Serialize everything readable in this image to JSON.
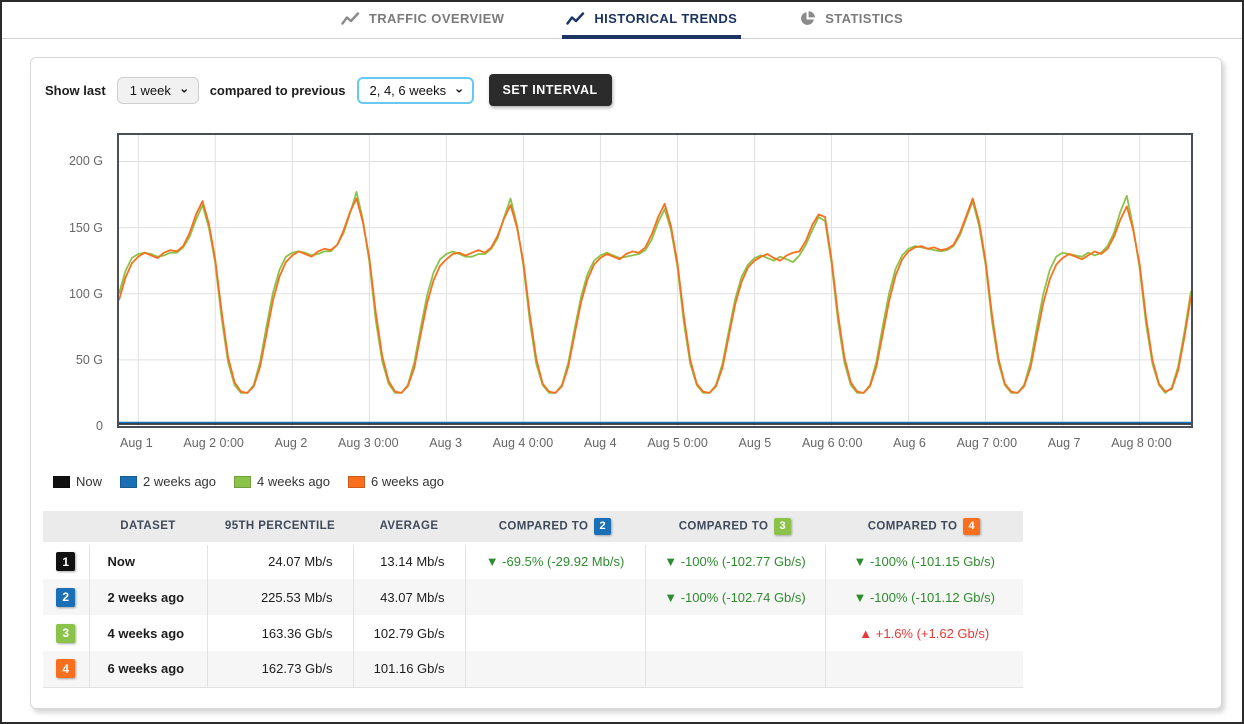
{
  "colors": {
    "accent_navy": "#1c3461",
    "green_down": "#2e8b2e",
    "red_up": "#e53935",
    "series_now": "#111111",
    "series_2w": "#1a6fb5",
    "series_4w": "#8bc34a",
    "series_6w": "#f96f1e"
  },
  "tabs": [
    {
      "label": "TRAFFIC OVERVIEW",
      "icon": "line-chart-icon",
      "active": false
    },
    {
      "label": "HISTORICAL TRENDS",
      "icon": "line-chart-icon",
      "active": true
    },
    {
      "label": "STATISTICS",
      "icon": "pie-chart-icon",
      "active": false
    }
  ],
  "controls": {
    "show_last_label": "Show last",
    "show_last_value": "1 week",
    "compared_label": "compared to previous",
    "compared_value": "2, 4, 6 weeks",
    "set_interval_label": "SET INTERVAL"
  },
  "chart_data": {
    "type": "line",
    "title": "",
    "xlabel": "",
    "ylabel": "",
    "grid": true,
    "legend_position": "bottom-left",
    "ylim": [
      0,
      220
    ],
    "y_ticks": [
      "200 G",
      "150 G",
      "100 G",
      "50 G",
      "0"
    ],
    "y_tick_values": [
      200,
      150,
      100,
      50,
      0
    ],
    "x_unit": "hours since Aug 1 00:00",
    "x_domain": [
      9,
      176
    ],
    "x_ticks": [
      {
        "hour": 12,
        "label": "Aug 1"
      },
      {
        "hour": 24,
        "label": "Aug 2 0:00"
      },
      {
        "hour": 36,
        "label": "Aug 2"
      },
      {
        "hour": 48,
        "label": "Aug 3 0:00"
      },
      {
        "hour": 60,
        "label": "Aug 3"
      },
      {
        "hour": 72,
        "label": "Aug 4 0:00"
      },
      {
        "hour": 84,
        "label": "Aug 4"
      },
      {
        "hour": 96,
        "label": "Aug 5 0:00"
      },
      {
        "hour": 108,
        "label": "Aug 5"
      },
      {
        "hour": 120,
        "label": "Aug 6 0:00"
      },
      {
        "hour": 132,
        "label": "Aug 6"
      },
      {
        "hour": 144,
        "label": "Aug 7 0:00"
      },
      {
        "hour": 156,
        "label": "Aug 7"
      },
      {
        "hour": 168,
        "label": "Aug 8 0:00"
      }
    ],
    "series": [
      {
        "name": "Now",
        "color": "#111111",
        "unit": "Gb/s",
        "constant": 0.013
      },
      {
        "name": "2 weeks ago",
        "color": "#1a6fb5",
        "unit": "Gb/s",
        "constant": 0.043
      },
      {
        "name": "4 weeks ago",
        "color": "#8bc34a",
        "unit": "Gb/s",
        "x_start_hour": 9,
        "step_hours": 1,
        "values": [
          100,
          117,
          127,
          130,
          131,
          130,
          128,
          129,
          131,
          131,
          135,
          143,
          156,
          167,
          150,
          123,
          81,
          48,
          31,
          25,
          25,
          31,
          49,
          76,
          101,
          118,
          128,
          131,
          132,
          131,
          129,
          130,
          132,
          132,
          137,
          146,
          161,
          177,
          156,
          124,
          80,
          49,
          32,
          25,
          25,
          31,
          48,
          74,
          99,
          116,
          126,
          130,
          132,
          130,
          128,
          128,
          130,
          130,
          134,
          142,
          158,
          172,
          152,
          121,
          79,
          47,
          31,
          25,
          25,
          31,
          48,
          74,
          98,
          115,
          125,
          129,
          131,
          129,
          127,
          128,
          129,
          130,
          133,
          141,
          154,
          164,
          148,
          120,
          78,
          47,
          31,
          25,
          25,
          31,
          47,
          72,
          96,
          113,
          122,
          127,
          129,
          127,
          125,
          128,
          126,
          124,
          129,
          137,
          148,
          158,
          155,
          123,
          80,
          48,
          31,
          25,
          25,
          31,
          49,
          76,
          101,
          119,
          129,
          134,
          136,
          135,
          134,
          133,
          132,
          133,
          136,
          144,
          157,
          170,
          151,
          122,
          79,
          48,
          31,
          25,
          25,
          31,
          48,
          75,
          100,
          118,
          128,
          131,
          130,
          129,
          128,
          131,
          129,
          131,
          136,
          146,
          162,
          174,
          150,
          119,
          77,
          47,
          31,
          25,
          29,
          45,
          72,
          102
        ]
      },
      {
        "name": "6 weeks ago",
        "color": "#f96f1e",
        "unit": "Gb/s",
        "x_start_hour": 9,
        "step_hours": 1,
        "values": [
          95,
          112,
          123,
          128,
          131,
          129,
          127,
          131,
          133,
          132,
          136,
          146,
          160,
          170,
          153,
          126,
          86,
          52,
          33,
          26,
          25,
          30,
          45,
          70,
          95,
          113,
          124,
          129,
          132,
          130,
          128,
          132,
          134,
          133,
          137,
          148,
          162,
          172,
          154,
          127,
          86,
          53,
          34,
          26,
          25,
          30,
          44,
          69,
          93,
          110,
          121,
          126,
          130,
          131,
          129,
          131,
          133,
          131,
          135,
          144,
          157,
          167,
          150,
          124,
          84,
          51,
          32,
          26,
          25,
          30,
          45,
          70,
          94,
          111,
          122,
          127,
          130,
          128,
          126,
          130,
          132,
          131,
          135,
          145,
          158,
          168,
          151,
          123,
          83,
          50,
          32,
          26,
          25,
          30,
          44,
          68,
          92,
          109,
          120,
          125,
          128,
          130,
          127,
          125,
          129,
          131,
          132,
          140,
          152,
          160,
          158,
          126,
          85,
          52,
          33,
          26,
          25,
          30,
          45,
          70,
          95,
          114,
          126,
          132,
          135,
          136,
          134,
          135,
          133,
          134,
          137,
          146,
          159,
          172,
          154,
          125,
          84,
          51,
          32,
          26,
          25,
          30,
          44,
          69,
          93,
          111,
          122,
          127,
          130,
          128,
          126,
          129,
          132,
          130,
          134,
          143,
          156,
          166,
          148,
          122,
          82,
          50,
          32,
          26,
          28,
          42,
          68,
          98
        ]
      }
    ]
  },
  "table": {
    "col_dataset": "DATASET",
    "col_percentile": "95TH PERCENTILE",
    "col_average": "AVERAGE",
    "col_compared_prefix": "COMPARED TO",
    "compare_badges": [
      {
        "num": "2",
        "color": "#1a6fb5"
      },
      {
        "num": "3",
        "color": "#8bc34a"
      },
      {
        "num": "4",
        "color": "#f96f1e"
      }
    ],
    "rows": [
      {
        "badge": "1",
        "badge_color": "#111111",
        "dataset": "Now",
        "percentile": "24.07 Mb/s",
        "average": "13.14 Mb/s",
        "cmp2": {
          "dir": "down",
          "text": "-69.5% (-29.92 Mb/s)"
        },
        "cmp3": {
          "dir": "down",
          "text": "-100% (-102.77 Gb/s)"
        },
        "cmp4": {
          "dir": "down",
          "text": "-100% (-101.15 Gb/s)"
        }
      },
      {
        "badge": "2",
        "badge_color": "#1a6fb5",
        "dataset": "2 weeks ago",
        "percentile": "225.53 Mb/s",
        "average": "43.07 Mb/s",
        "cmp2": null,
        "cmp3": {
          "dir": "down",
          "text": "-100% (-102.74 Gb/s)"
        },
        "cmp4": {
          "dir": "down",
          "text": "-100% (-101.12 Gb/s)"
        }
      },
      {
        "badge": "3",
        "badge_color": "#8bc34a",
        "dataset": "4 weeks ago",
        "percentile": "163.36 Gb/s",
        "average": "102.79 Gb/s",
        "cmp2": null,
        "cmp3": null,
        "cmp4": {
          "dir": "up",
          "text": "+1.6% (+1.62 Gb/s)"
        }
      },
      {
        "badge": "4",
        "badge_color": "#f96f1e",
        "dataset": "6 weeks ago",
        "percentile": "162.73 Gb/s",
        "average": "101.16 Gb/s",
        "cmp2": null,
        "cmp3": null,
        "cmp4": null
      }
    ]
  }
}
